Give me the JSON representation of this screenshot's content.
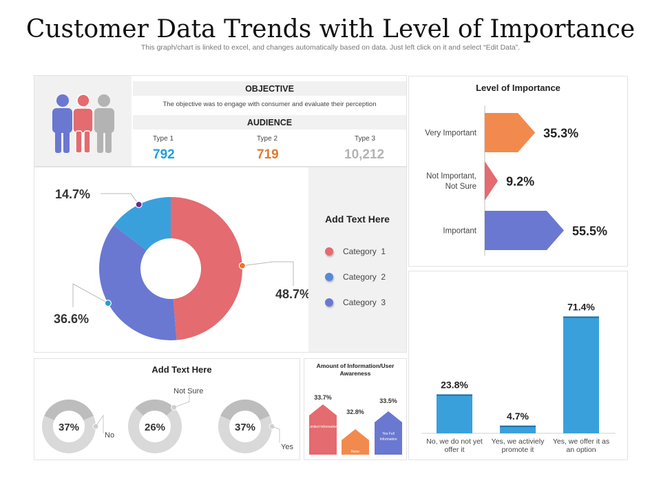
{
  "header": {
    "title": "Customer Data Trends with Level of Importance",
    "subtitle": "This graph/chart is linked to excel, and changes automatically based on data. Just left click on it and select “Edit Data”."
  },
  "objective": {
    "heading": "OBJECTIVE",
    "text": "The objective was to engage with consumer and evaluate their perception"
  },
  "audience": {
    "heading": "AUDIENCE",
    "types": [
      {
        "label": "Type 1",
        "value": "792",
        "color": "#1ea0d8"
      },
      {
        "label": "Type 2",
        "value": "719",
        "color": "#e07a2c"
      },
      {
        "label": "Type 3",
        "value": "10,212",
        "color": "#b3b3b3"
      }
    ]
  },
  "legend": {
    "title": "Add  Text Here",
    "items": [
      {
        "label": "Category  1",
        "color": "#e46b6f"
      },
      {
        "label": "Category  2",
        "color": "#5a87d6"
      },
      {
        "label": "Category  3",
        "color": "#6a78d1"
      }
    ]
  },
  "small_donuts": {
    "title": "Add Text Here",
    "items": [
      {
        "value": "37%",
        "label": "No"
      },
      {
        "value": "26%",
        "label": "Not Sure"
      },
      {
        "value": "37%",
        "label": "Yes"
      }
    ]
  },
  "awareness": {
    "title": "Amount of Information/User Awareness",
    "items": [
      {
        "pct": "33.7%",
        "label": "Limited Information",
        "color": "#e46b6f"
      },
      {
        "pct": "32.8%",
        "label": "None",
        "color": "#f28a4e"
      },
      {
        "pct": "33.5%",
        "label": "Yes Full Information",
        "color": "#6a78d1"
      }
    ]
  },
  "chart_data": [
    {
      "type": "pie",
      "title": "",
      "labels": [
        "Category 1",
        "Category 2",
        "Category 3"
      ],
      "values": [
        48.7,
        36.6,
        14.7
      ],
      "value_labels": [
        "48.7%",
        "36.6%",
        "14.7%"
      ],
      "colors": [
        "#e46b6f",
        "#6a78d1",
        "#3aa0dc"
      ]
    },
    {
      "type": "bar",
      "title": "Level of Importance",
      "orientation": "horizontal",
      "categories": [
        "Very Important",
        "Not Important, Not Sure",
        "Important"
      ],
      "category_lines": [
        [
          "Very Important"
        ],
        [
          "Not Important,",
          "Not Sure"
        ],
        [
          "Important"
        ]
      ],
      "values": [
        35.3,
        9.2,
        55.5
      ],
      "value_labels": [
        "35.3%",
        "9.2%",
        "55.5%"
      ],
      "colors": [
        "#f28a4e",
        "#e46b6f",
        "#6a78d1"
      ],
      "xlim": [
        0,
        60
      ]
    },
    {
      "type": "bar",
      "title": "",
      "categories": [
        "No, we do not yet offer it",
        "Yes, we activiely promote it",
        "Yes, we offer it as an option"
      ],
      "category_lines": [
        [
          "No, we do not yet",
          "offer it"
        ],
        [
          "Yes, we activiely",
          "promote it"
        ],
        [
          "Yes, we offer it as",
          "an option"
        ]
      ],
      "values": [
        23.8,
        4.7,
        71.4
      ],
      "value_labels": [
        "23.8%",
        "4.7%",
        "71.4%"
      ],
      "color": "#3aa0dc",
      "ylim": [
        0,
        80
      ]
    },
    {
      "type": "pie",
      "title": "Add Text Here",
      "labels": [
        "No",
        "Not Sure",
        "Yes"
      ],
      "values": [
        37,
        26,
        37
      ],
      "value_labels": [
        "37%",
        "26%",
        "37%"
      ]
    }
  ]
}
